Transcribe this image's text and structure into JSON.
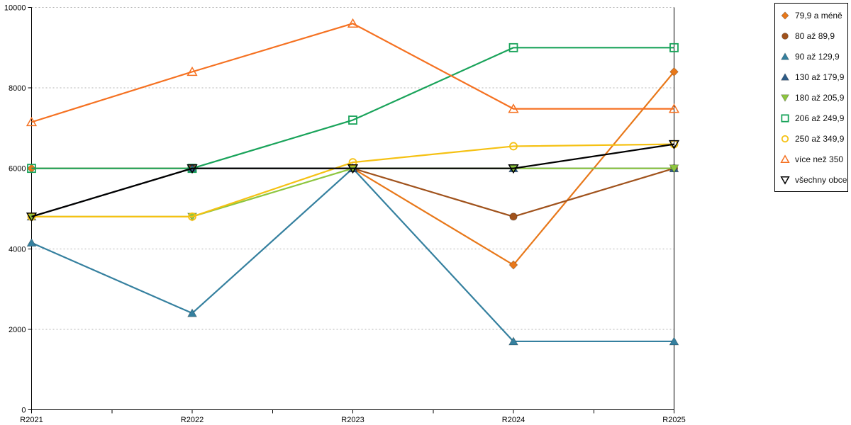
{
  "chart_data": {
    "type": "line",
    "title": "",
    "x_categories": [
      "R2021",
      "R2022",
      "R2023",
      "R2024",
      "R2025"
    ],
    "y_ticks": [
      0,
      2000,
      4000,
      6000,
      8000,
      10000
    ],
    "ylim": [
      0,
      10000
    ],
    "grid": "horizontal-dashed",
    "legend_position": "outside-top-right",
    "series": [
      {
        "name": "79,9 a méně",
        "marker": "diamond-filled",
        "color": "#e8781a",
        "values": [
          6000,
          6000,
          6000,
          3600,
          8400
        ]
      },
      {
        "name": "80 až 89,9",
        "marker": "circle-filled",
        "color": "#a0521c",
        "values": [
          4800,
          6000,
          6000,
          4800,
          6000
        ]
      },
      {
        "name": "90 až 129,9",
        "marker": "triangle-up-filled",
        "color": "#35809f",
        "values": [
          4150,
          2400,
          6000,
          1700,
          1700
        ]
      },
      {
        "name": "130 až 179,9",
        "marker": "triangle-up-filled",
        "color": "#2e5c88",
        "values": [
          4800,
          6000,
          6000,
          6000,
          6000
        ]
      },
      {
        "name": "180 až 205,9",
        "marker": "triangle-down-filled",
        "color": "#8ec63f",
        "values": [
          4800,
          4800,
          6000,
          6000,
          6000
        ]
      },
      {
        "name": "206 až 249,9",
        "marker": "square-open",
        "color": "#19a35a",
        "values": [
          6000,
          6000,
          7200,
          9000,
          9000
        ]
      },
      {
        "name": "250 až 349,9",
        "marker": "circle-open",
        "color": "#f5c113",
        "values": [
          4800,
          4800,
          6150,
          6550,
          6600
        ]
      },
      {
        "name": "více než 350",
        "marker": "triangle-up-open",
        "color": "#f57121",
        "values": [
          7150,
          8400,
          9600,
          7480,
          7480
        ]
      },
      {
        "name": "všechny obce",
        "marker": "triangle-down-open",
        "color": "#000000",
        "values": [
          4800,
          6000,
          6000,
          6000,
          6600
        ]
      }
    ]
  },
  "colors": {
    "background": "#ffffff",
    "axis": "#000000",
    "gridline": "#b3b3b3",
    "tick_text": "#000000"
  }
}
